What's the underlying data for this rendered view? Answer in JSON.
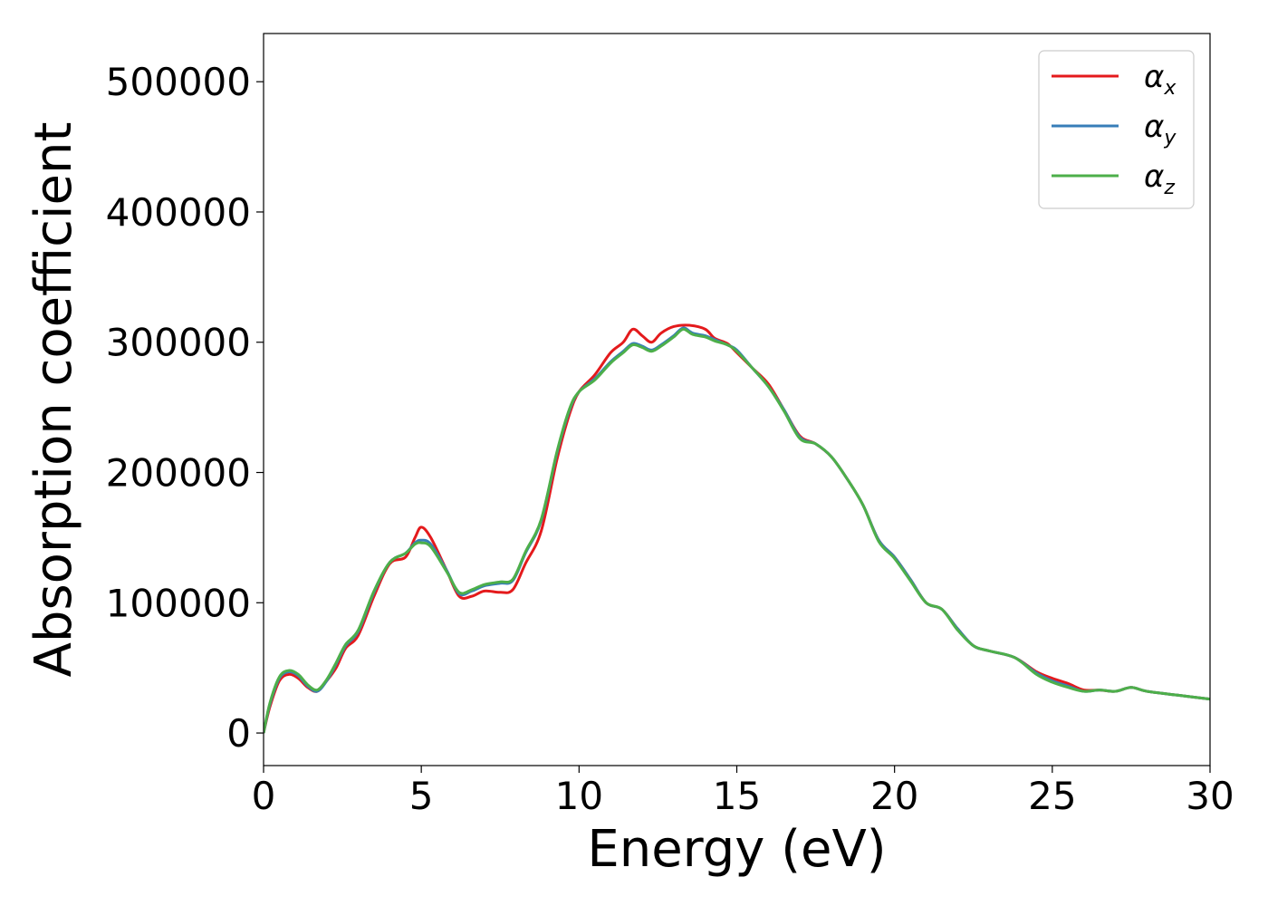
{
  "chart_data": {
    "type": "line",
    "title": "",
    "xlabel": "Energy (eV)",
    "ylabel": "Absorption coefficient",
    "xlim": [
      0,
      30
    ],
    "ylim": [
      -25000,
      537000
    ],
    "xticks": [
      0,
      5,
      10,
      15,
      20,
      25,
      30
    ],
    "xtick_labels": [
      "0",
      "5",
      "10",
      "15",
      "20",
      "25",
      "30"
    ],
    "yticks": [
      0,
      100000,
      200000,
      300000,
      400000,
      500000
    ],
    "ytick_labels": [
      "0",
      "100000",
      "200000",
      "300000",
      "400000",
      "500000"
    ],
    "grid": false,
    "legend_position": "top-right",
    "series": [
      {
        "name": "α",
        "subscript": "x",
        "color": "#e41a1c",
        "points": [
          [
            0,
            0
          ],
          [
            0.2,
            20000
          ],
          [
            0.5,
            40000
          ],
          [
            0.8,
            45000
          ],
          [
            1.1,
            42000
          ],
          [
            1.4,
            35000
          ],
          [
            1.7,
            32000
          ],
          [
            2.0,
            40000
          ],
          [
            2.3,
            50000
          ],
          [
            2.6,
            65000
          ],
          [
            3.0,
            75000
          ],
          [
            3.5,
            105000
          ],
          [
            4.0,
            130000
          ],
          [
            4.5,
            135000
          ],
          [
            4.8,
            150000
          ],
          [
            5.0,
            158000
          ],
          [
            5.3,
            150000
          ],
          [
            5.8,
            125000
          ],
          [
            6.2,
            105000
          ],
          [
            6.6,
            105000
          ],
          [
            7.0,
            109000
          ],
          [
            7.5,
            108000
          ],
          [
            7.9,
            110000
          ],
          [
            8.3,
            130000
          ],
          [
            8.8,
            155000
          ],
          [
            9.3,
            210000
          ],
          [
            9.7,
            245000
          ],
          [
            10.0,
            262000
          ],
          [
            10.5,
            275000
          ],
          [
            11.0,
            292000
          ],
          [
            11.4,
            300000
          ],
          [
            11.7,
            310000
          ],
          [
            12.0,
            305000
          ],
          [
            12.3,
            300000
          ],
          [
            12.6,
            307000
          ],
          [
            13.0,
            312000
          ],
          [
            13.5,
            313000
          ],
          [
            14.0,
            310000
          ],
          [
            14.3,
            303000
          ],
          [
            14.7,
            299000
          ],
          [
            15.0,
            292000
          ],
          [
            15.5,
            280000
          ],
          [
            16.0,
            268000
          ],
          [
            16.5,
            248000
          ],
          [
            17.0,
            228000
          ],
          [
            17.5,
            222000
          ],
          [
            18.0,
            212000
          ],
          [
            18.5,
            195000
          ],
          [
            19.0,
            175000
          ],
          [
            19.5,
            148000
          ],
          [
            20.0,
            135000
          ],
          [
            20.5,
            118000
          ],
          [
            21.0,
            100000
          ],
          [
            21.5,
            95000
          ],
          [
            22.0,
            80000
          ],
          [
            22.5,
            67000
          ],
          [
            23.0,
            63000
          ],
          [
            23.8,
            58000
          ],
          [
            24.5,
            47000
          ],
          [
            25.0,
            42000
          ],
          [
            25.5,
            38000
          ],
          [
            26.0,
            33000
          ],
          [
            26.5,
            33000
          ],
          [
            27.0,
            32000
          ],
          [
            27.5,
            35000
          ],
          [
            28.0,
            32000
          ],
          [
            29.0,
            29000
          ],
          [
            30.0,
            26000
          ]
        ]
      },
      {
        "name": "α",
        "subscript": "y",
        "color": "#377eb8",
        "points": [
          [
            0,
            0
          ],
          [
            0.2,
            22000
          ],
          [
            0.5,
            42000
          ],
          [
            0.8,
            47000
          ],
          [
            1.1,
            44000
          ],
          [
            1.4,
            36000
          ],
          [
            1.7,
            32000
          ],
          [
            2.0,
            40000
          ],
          [
            2.3,
            53000
          ],
          [
            2.6,
            67000
          ],
          [
            3.0,
            78000
          ],
          [
            3.5,
            108000
          ],
          [
            4.0,
            131000
          ],
          [
            4.5,
            138000
          ],
          [
            4.8,
            146000
          ],
          [
            5.0,
            148000
          ],
          [
            5.3,
            145000
          ],
          [
            5.8,
            125000
          ],
          [
            6.2,
            107000
          ],
          [
            6.6,
            109000
          ],
          [
            7.0,
            113000
          ],
          [
            7.5,
            115000
          ],
          [
            7.9,
            117000
          ],
          [
            8.3,
            138000
          ],
          [
            8.8,
            163000
          ],
          [
            9.3,
            215000
          ],
          [
            9.7,
            248000
          ],
          [
            10.0,
            262000
          ],
          [
            10.5,
            272000
          ],
          [
            11.0,
            285000
          ],
          [
            11.4,
            293000
          ],
          [
            11.7,
            299000
          ],
          [
            12.0,
            297000
          ],
          [
            12.3,
            294000
          ],
          [
            12.6,
            298000
          ],
          [
            13.0,
            305000
          ],
          [
            13.3,
            311000
          ],
          [
            13.6,
            307000
          ],
          [
            14.0,
            305000
          ],
          [
            14.3,
            302000
          ],
          [
            14.7,
            298000
          ],
          [
            15.0,
            294000
          ],
          [
            15.5,
            280000
          ],
          [
            16.0,
            266000
          ],
          [
            16.5,
            248000
          ],
          [
            17.0,
            227000
          ],
          [
            17.5,
            222000
          ],
          [
            18.0,
            212000
          ],
          [
            18.5,
            195000
          ],
          [
            19.0,
            175000
          ],
          [
            19.5,
            148000
          ],
          [
            20.0,
            135000
          ],
          [
            20.5,
            118000
          ],
          [
            21.0,
            100000
          ],
          [
            21.5,
            95000
          ],
          [
            22.0,
            80000
          ],
          [
            22.5,
            67000
          ],
          [
            23.0,
            63000
          ],
          [
            23.8,
            58000
          ],
          [
            24.5,
            46000
          ],
          [
            25.0,
            40000
          ],
          [
            25.5,
            36000
          ],
          [
            26.0,
            32000
          ],
          [
            26.5,
            33000
          ],
          [
            27.0,
            32000
          ],
          [
            27.5,
            35000
          ],
          [
            28.0,
            32000
          ],
          [
            29.0,
            29000
          ],
          [
            30.0,
            26000
          ]
        ]
      },
      {
        "name": "α",
        "subscript": "z",
        "color": "#4daf4a",
        "points": [
          [
            0,
            0
          ],
          [
            0.2,
            23000
          ],
          [
            0.5,
            43000
          ],
          [
            0.8,
            48000
          ],
          [
            1.1,
            45000
          ],
          [
            1.4,
            37000
          ],
          [
            1.7,
            33000
          ],
          [
            2.0,
            41000
          ],
          [
            2.3,
            54000
          ],
          [
            2.6,
            68000
          ],
          [
            3.0,
            79000
          ],
          [
            3.5,
            109000
          ],
          [
            4.0,
            131000
          ],
          [
            4.5,
            138000
          ],
          [
            4.8,
            145000
          ],
          [
            5.0,
            146000
          ],
          [
            5.3,
            143000
          ],
          [
            5.8,
            124000
          ],
          [
            6.2,
            108000
          ],
          [
            6.6,
            110000
          ],
          [
            7.0,
            114000
          ],
          [
            7.5,
            116000
          ],
          [
            7.9,
            118000
          ],
          [
            8.3,
            139000
          ],
          [
            8.8,
            164000
          ],
          [
            9.3,
            216000
          ],
          [
            9.7,
            249000
          ],
          [
            10.0,
            262000
          ],
          [
            10.5,
            271000
          ],
          [
            11.0,
            284000
          ],
          [
            11.4,
            292000
          ],
          [
            11.7,
            298000
          ],
          [
            12.0,
            296000
          ],
          [
            12.3,
            293000
          ],
          [
            12.6,
            297000
          ],
          [
            13.0,
            304000
          ],
          [
            13.3,
            310000
          ],
          [
            13.6,
            306000
          ],
          [
            14.0,
            304000
          ],
          [
            14.3,
            301000
          ],
          [
            14.7,
            298000
          ],
          [
            15.0,
            293000
          ],
          [
            15.5,
            280000
          ],
          [
            16.0,
            266000
          ],
          [
            16.5,
            247000
          ],
          [
            17.0,
            226000
          ],
          [
            17.5,
            222000
          ],
          [
            18.0,
            212000
          ],
          [
            18.5,
            195000
          ],
          [
            19.0,
            175000
          ],
          [
            19.5,
            147000
          ],
          [
            20.0,
            134000
          ],
          [
            20.5,
            117000
          ],
          [
            21.0,
            100000
          ],
          [
            21.5,
            95000
          ],
          [
            22.0,
            79000
          ],
          [
            22.5,
            67000
          ],
          [
            23.0,
            63000
          ],
          [
            23.8,
            58000
          ],
          [
            24.5,
            45000
          ],
          [
            25.0,
            39000
          ],
          [
            25.5,
            35000
          ],
          [
            26.0,
            32000
          ],
          [
            26.5,
            33000
          ],
          [
            27.0,
            32000
          ],
          [
            27.5,
            35000
          ],
          [
            28.0,
            32000
          ],
          [
            29.0,
            29000
          ],
          [
            30.0,
            26000
          ]
        ]
      }
    ]
  }
}
